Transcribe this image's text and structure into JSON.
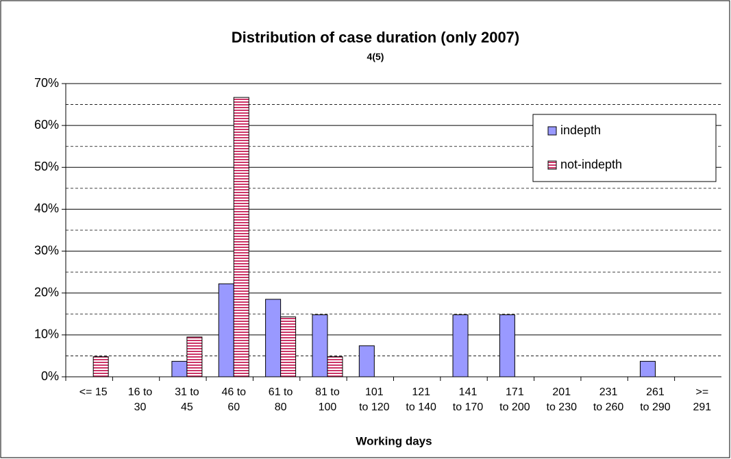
{
  "chart_data": {
    "type": "bar",
    "title": "Distribution of case duration (only 2007)",
    "subtitle": "4(5)",
    "x_label": "Working days",
    "categories": [
      "<= 15",
      "16 to\n30",
      "31 to\n45",
      "46 to\n60",
      "61 to\n80",
      "81 to\n100",
      "101\nto 120",
      "121\nto 140",
      "141\nto 170",
      "171\nto 200",
      "201\nto 230",
      "231\nto 260",
      "261\nto 290",
      ">=\n291"
    ],
    "series": [
      {
        "name": "indepth",
        "color": "#9999ff",
        "pattern": "solid",
        "values": [
          0,
          0,
          3.7,
          22.2,
          18.5,
          14.8,
          7.4,
          0,
          14.8,
          14.8,
          0,
          0,
          3.7,
          0
        ]
      },
      {
        "name": "not-indepth",
        "color": "#cc3366",
        "pattern": "horizontal-stripes",
        "values": [
          4.8,
          0,
          9.5,
          66.7,
          14.3,
          4.8,
          0,
          0,
          0,
          0,
          0,
          0,
          0,
          0
        ]
      }
    ],
    "ylim": [
      0,
      70
    ],
    "yticks": [
      {
        "value": 0,
        "label": "0%"
      },
      {
        "value": 10,
        "label": "10%"
      },
      {
        "value": 20,
        "label": "20%"
      },
      {
        "value": 30,
        "label": "30%"
      },
      {
        "value": 40,
        "label": "40%"
      },
      {
        "value": 50,
        "label": "50%"
      },
      {
        "value": 60,
        "label": "60%"
      },
      {
        "value": 70,
        "label": "70%"
      }
    ],
    "yminor": [
      5,
      15,
      25,
      35,
      45,
      55,
      65
    ],
    "grid": true,
    "legend": "upper right"
  }
}
